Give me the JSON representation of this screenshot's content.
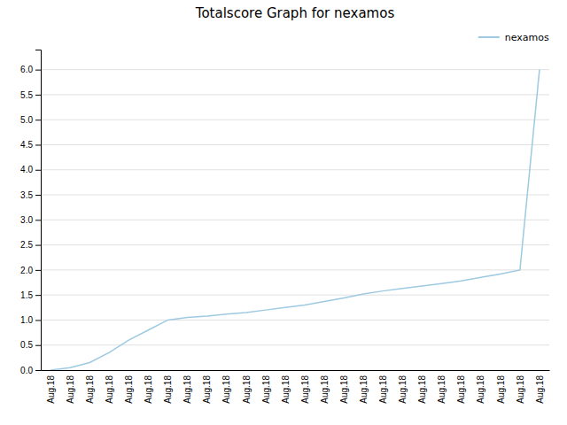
{
  "chart_data": {
    "type": "line",
    "title": "Totalscore Graph for nexamos",
    "categories": [
      "Aug.18",
      "Aug.18",
      "Aug.18",
      "Aug.18",
      "Aug.18",
      "Aug.18",
      "Aug.18",
      "Aug.18",
      "Aug.18",
      "Aug.18",
      "Aug.18",
      "Aug.18",
      "Aug.18",
      "Aug.18",
      "Aug.18",
      "Aug.18",
      "Aug.18",
      "Aug.18",
      "Aug.18",
      "Aug.18",
      "Aug.18",
      "Aug.18",
      "Aug.18",
      "Aug.18",
      "Aug.18",
      "Aug.18"
    ],
    "series": [
      {
        "name": "nexamos",
        "color": "#9ecae1",
        "values": [
          0.0,
          0.05,
          0.15,
          0.35,
          0.6,
          0.8,
          1.0,
          1.05,
          1.08,
          1.12,
          1.15,
          1.2,
          1.25,
          1.3,
          1.37,
          1.44,
          1.52,
          1.58,
          1.63,
          1.68,
          1.73,
          1.78,
          1.85,
          1.92,
          2.0,
          6.0
        ]
      }
    ],
    "ylim": [
      0.0,
      6.4
    ],
    "yticks": [
      {
        "value": 0.0,
        "label": "0.0"
      },
      0.5,
      {
        "value": 1.0,
        "label": "1.0"
      },
      1.5,
      {
        "value": 2.0,
        "label": "2.0"
      },
      2.5,
      {
        "value": 3.0,
        "label": "3.0"
      },
      3.5,
      {
        "value": 4.0,
        "label": "4.0"
      },
      4.5,
      {
        "value": 5.0,
        "label": "5.0"
      },
      5.5,
      {
        "value": 6.0,
        "label": "6.0"
      }
    ],
    "grid": true,
    "legend": "top-right"
  }
}
